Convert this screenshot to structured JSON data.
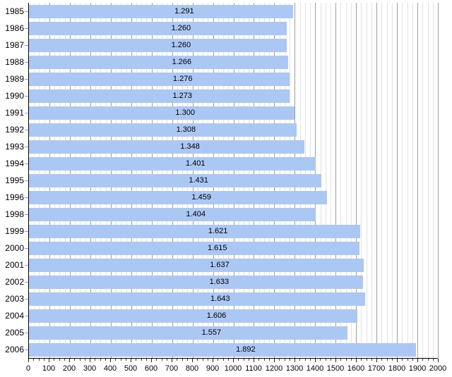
{
  "chart_data": {
    "type": "bar",
    "orientation": "horizontal",
    "title": "",
    "xlabel": "",
    "ylabel": "",
    "categories": [
      "1985",
      "1986",
      "1987",
      "1988",
      "1989",
      "1990",
      "1991",
      "1992",
      "1993",
      "1994",
      "1995",
      "1996",
      "1998",
      "1999",
      "2000",
      "2001",
      "2002",
      "2003",
      "2004",
      "2005",
      "2006"
    ],
    "values": [
      1291,
      1260,
      1260,
      1266,
      1276,
      1273,
      1300,
      1308,
      1348,
      1401,
      1431,
      1459,
      1404,
      1621,
      1615,
      1637,
      1633,
      1643,
      1606,
      1557,
      1892
    ],
    "bar_labels": [
      "1.291",
      "1.260",
      "1.260",
      "1.266",
      "1.276",
      "1.273",
      "1.300",
      "1.308",
      "1.348",
      "1.401",
      "1.431",
      "1.459",
      "1.404",
      "1.621",
      "1.615",
      "1.637",
      "1.633",
      "1.643",
      "1.606",
      "1.557",
      "1.892"
    ],
    "xlim": [
      0,
      2000
    ],
    "x_tick_interval": 100,
    "x_minor_interval": 25,
    "x_tick_labels": [
      "0",
      "100",
      "200",
      "300",
      "400",
      "500",
      "600",
      "700",
      "800",
      "900",
      "1000",
      "1100",
      "1200",
      "1300",
      "1400",
      "1500",
      "1600",
      "1700",
      "1800",
      "1900",
      "2000"
    ],
    "grid": "vertical-minor-and-major",
    "legend": "none",
    "colors": {
      "bar": "#abc7f3",
      "minor_grid": "#e2e2e2",
      "major_grid": "#9e9e9e",
      "axis": "#000000",
      "text": "#000000"
    }
  }
}
